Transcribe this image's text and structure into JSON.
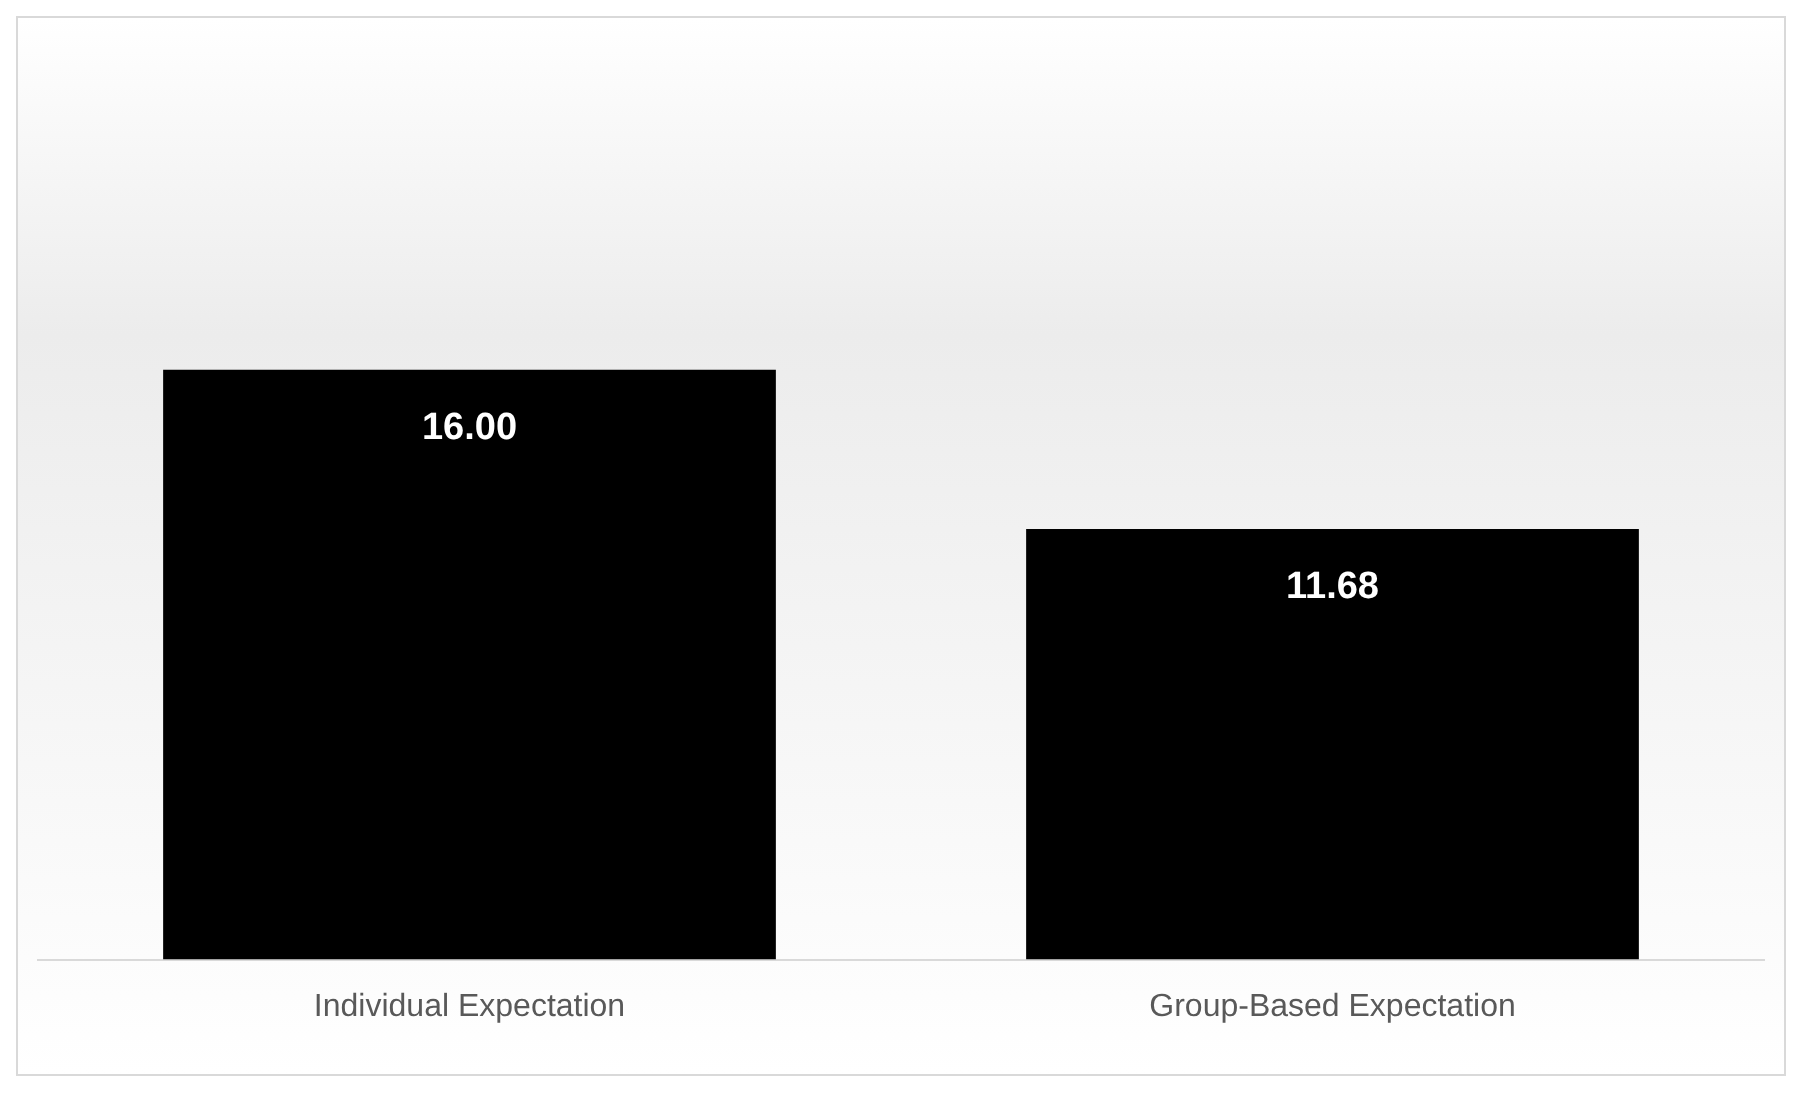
{
  "chart_data": {
    "type": "bar",
    "categories": [
      "Individual Expectation",
      "Group-Based Expectation"
    ],
    "values": [
      16.0,
      11.68
    ],
    "color": "#000000",
    "value_labels": [
      "16.00",
      "11.68"
    ],
    "grid": false,
    "legend": false
  }
}
